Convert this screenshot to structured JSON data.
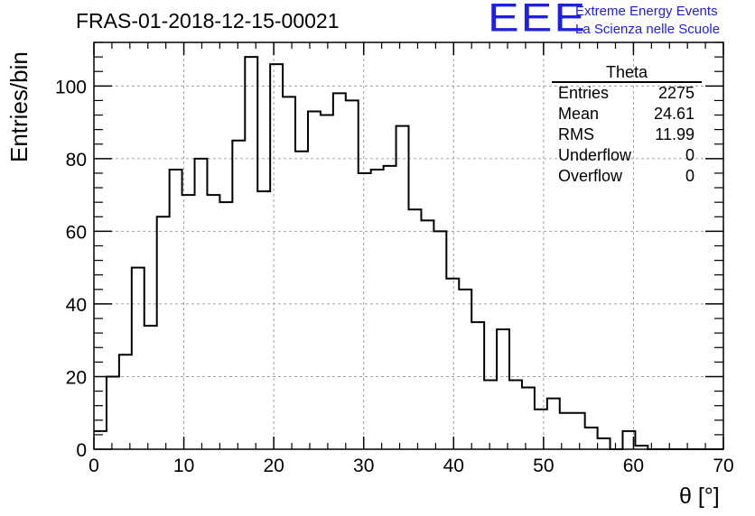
{
  "header": {
    "run_title": "FRAS-01-2018-12-15-00021",
    "logo_text": "EEE",
    "logo_line1": "Extreme Energy Events",
    "logo_line2": "La Scienza nelle Scuole"
  },
  "colors": {
    "logo": "#2020e0",
    "line": "#000000",
    "grid": "#a0a0a0"
  },
  "chart_data": {
    "type": "histogram",
    "title": "FRAS-01-2018-12-15-00021",
    "xlabel": "θ [°]",
    "ylabel": "Entries/bin",
    "xlim": [
      0,
      70
    ],
    "ylim": [
      0,
      112
    ],
    "x_ticks": [
      0,
      10,
      20,
      30,
      40,
      50,
      60,
      70
    ],
    "y_ticks": [
      0,
      20,
      40,
      60,
      80,
      100
    ],
    "grid": true,
    "bin_width": 1.4,
    "bin_start": 0,
    "counts": [
      5,
      20,
      26,
      50,
      34,
      64,
      77,
      70,
      80,
      70,
      68,
      85,
      108,
      71,
      106,
      97,
      82,
      93,
      92,
      98,
      96,
      76,
      77,
      78,
      89,
      66,
      63,
      60,
      47,
      44,
      35,
      19,
      33,
      19,
      17,
      11,
      14,
      10,
      10,
      6,
      3,
      0,
      5,
      1,
      0,
      0,
      0,
      0,
      0,
      0
    ],
    "stats": {
      "name": "Theta",
      "rows": [
        {
          "label": "Entries",
          "value": "2275"
        },
        {
          "label": "Mean",
          "value": "24.61"
        },
        {
          "label": "RMS",
          "value": "11.99"
        },
        {
          "label": "Underflow",
          "value": "0"
        },
        {
          "label": "Overflow",
          "value": "0"
        }
      ]
    }
  }
}
